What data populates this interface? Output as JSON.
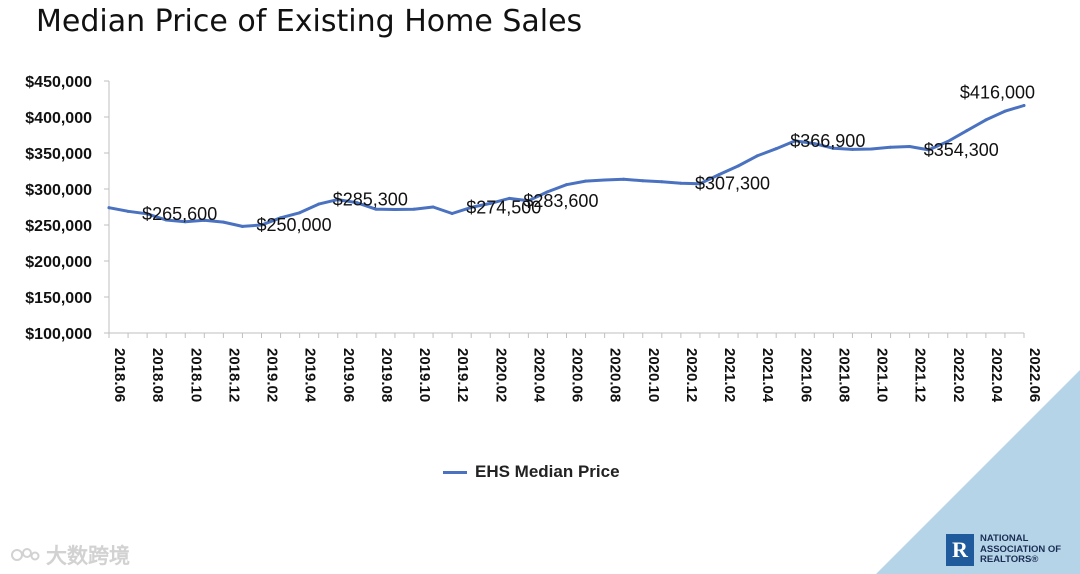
{
  "title": "Median Price of Existing Home Sales",
  "colors": {
    "line": "#4a72c0",
    "axis": "#bfbfbf",
    "corner": "#b6d4e8"
  },
  "chart_data": {
    "type": "line",
    "title": "Median Price of Existing Home Sales",
    "xlabel": "",
    "ylabel": "",
    "ylim": [
      100000,
      450000
    ],
    "yticks": [
      100000,
      150000,
      200000,
      250000,
      300000,
      350000,
      400000,
      450000
    ],
    "ytick_labels": [
      "$100,000",
      "$150,000",
      "$200,000",
      "$250,000",
      "$300,000",
      "$350,000",
      "$400,000",
      "$450,000"
    ],
    "x": [
      "2018.06",
      "2018.07",
      "2018.08",
      "2018.09",
      "2018.10",
      "2018.11",
      "2018.12",
      "2019.01",
      "2019.02",
      "2019.03",
      "2019.04",
      "2019.05",
      "2019.06",
      "2019.07",
      "2019.08",
      "2019.09",
      "2019.10",
      "2019.11",
      "2019.12",
      "2020.01",
      "2020.02",
      "2020.03",
      "2020.04",
      "2020.05",
      "2020.06",
      "2020.07",
      "2020.08",
      "2020.09",
      "2020.10",
      "2020.11",
      "2020.12",
      "2021.01",
      "2021.02",
      "2021.03",
      "2021.04",
      "2021.05",
      "2021.06",
      "2021.07",
      "2021.08",
      "2021.09",
      "2021.10",
      "2021.11",
      "2021.12",
      "2022.01",
      "2022.02",
      "2022.03",
      "2022.04",
      "2022.05",
      "2022.06"
    ],
    "xtick_labels": [
      "2018.06",
      "2018.08",
      "2018.10",
      "2018.12",
      "2019.02",
      "2019.04",
      "2019.06",
      "2019.08",
      "2019.10",
      "2019.12",
      "2020.02",
      "2020.04",
      "2020.06",
      "2020.08",
      "2020.10",
      "2020.12",
      "2021.02",
      "2021.04",
      "2021.06",
      "2021.08",
      "2021.10",
      "2021.12",
      "2022.02",
      "2022.04",
      "2022.06"
    ],
    "series": [
      {
        "name": "EHS Median Price",
        "values": [
          274000,
          269000,
          265600,
          257000,
          254500,
          256500,
          254000,
          248000,
          250000,
          260000,
          267000,
          279000,
          285300,
          281000,
          272000,
          271500,
          272000,
          275000,
          266000,
          274500,
          280000,
          287000,
          283600,
          296000,
          306000,
          311000,
          312500,
          313500,
          311500,
          310000,
          308000,
          307300,
          320000,
          332000,
          346000,
          356000,
          366900,
          363000,
          356500,
          355000,
          355500,
          358000,
          359000,
          354300,
          366000,
          381000,
          396000,
          408000,
          416000
        ]
      }
    ],
    "annotations": [
      {
        "label": "$265,600",
        "index": 2,
        "value": 265600,
        "anchor": "start"
      },
      {
        "label": "$250,000",
        "index": 8,
        "value": 250000,
        "anchor": "start"
      },
      {
        "label": "$285,300",
        "index": 12,
        "value": 285300,
        "anchor": "start"
      },
      {
        "label": "$274,500",
        "index": 19,
        "value": 274500,
        "anchor": "start"
      },
      {
        "label": "$283,600",
        "index": 22,
        "value": 283600,
        "anchor": "start"
      },
      {
        "label": "$307,300",
        "index": 31,
        "value": 307300,
        "anchor": "start"
      },
      {
        "label": "$366,900",
        "index": 36,
        "value": 366900,
        "anchor": "start"
      },
      {
        "label": "$354,300",
        "index": 43,
        "value": 354300,
        "anchor": "start"
      },
      {
        "label": "$416,000",
        "index": 48,
        "value": 416000,
        "anchor": "end"
      }
    ],
    "legend": {
      "label": "EHS Median Price",
      "position": "bottom-center"
    }
  },
  "watermark": {
    "text": "大数跨境"
  },
  "brand": {
    "logo_letter": "R",
    "line1": "NATIONAL",
    "line2": "ASSOCIATION OF",
    "line3": "REALTORS®"
  }
}
